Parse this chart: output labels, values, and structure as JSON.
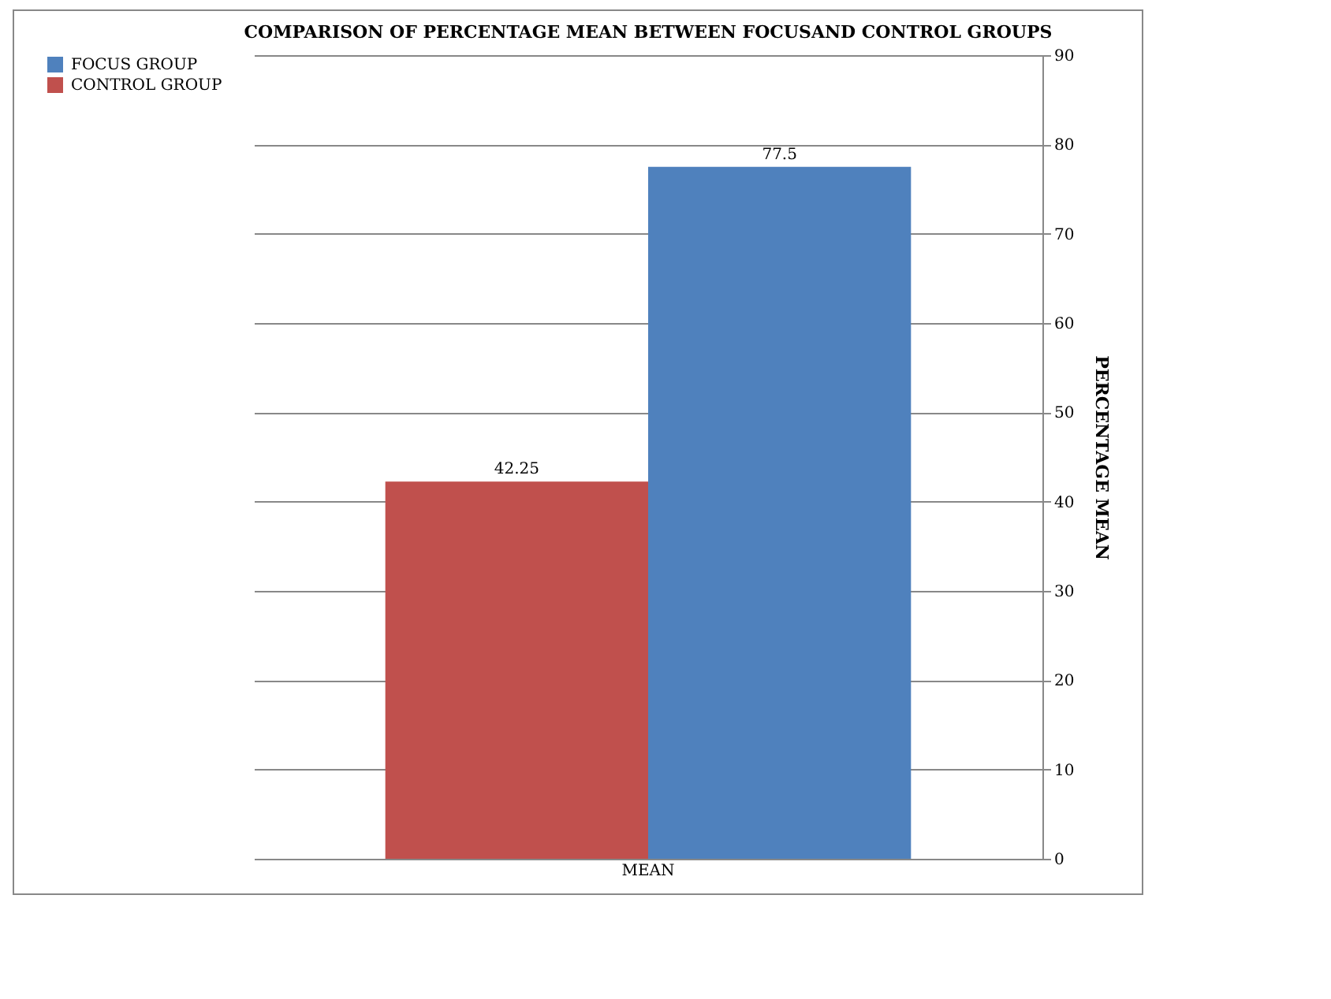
{
  "chart_data": {
    "type": "bar",
    "title": "COMPARISON OF PERCENTAGE MEAN BETWEEN FOCUSAND CONTROL GROUPS",
    "ylabel": "PERCENTAGE MEAN",
    "categories": [
      "MEAN"
    ],
    "series": [
      {
        "name": "FOCUS GROUP",
        "color": "#4f81bd",
        "values": [
          77.5
        ]
      },
      {
        "name": "CONTROL GROUP",
        "color": "#c0504d",
        "values": [
          42.25
        ]
      }
    ],
    "ylim": [
      0,
      90
    ],
    "yticks": [
      0,
      10,
      20,
      30,
      40,
      50,
      60,
      70,
      80,
      90
    ],
    "grid": "y",
    "legend": "left",
    "data_labels": true
  }
}
